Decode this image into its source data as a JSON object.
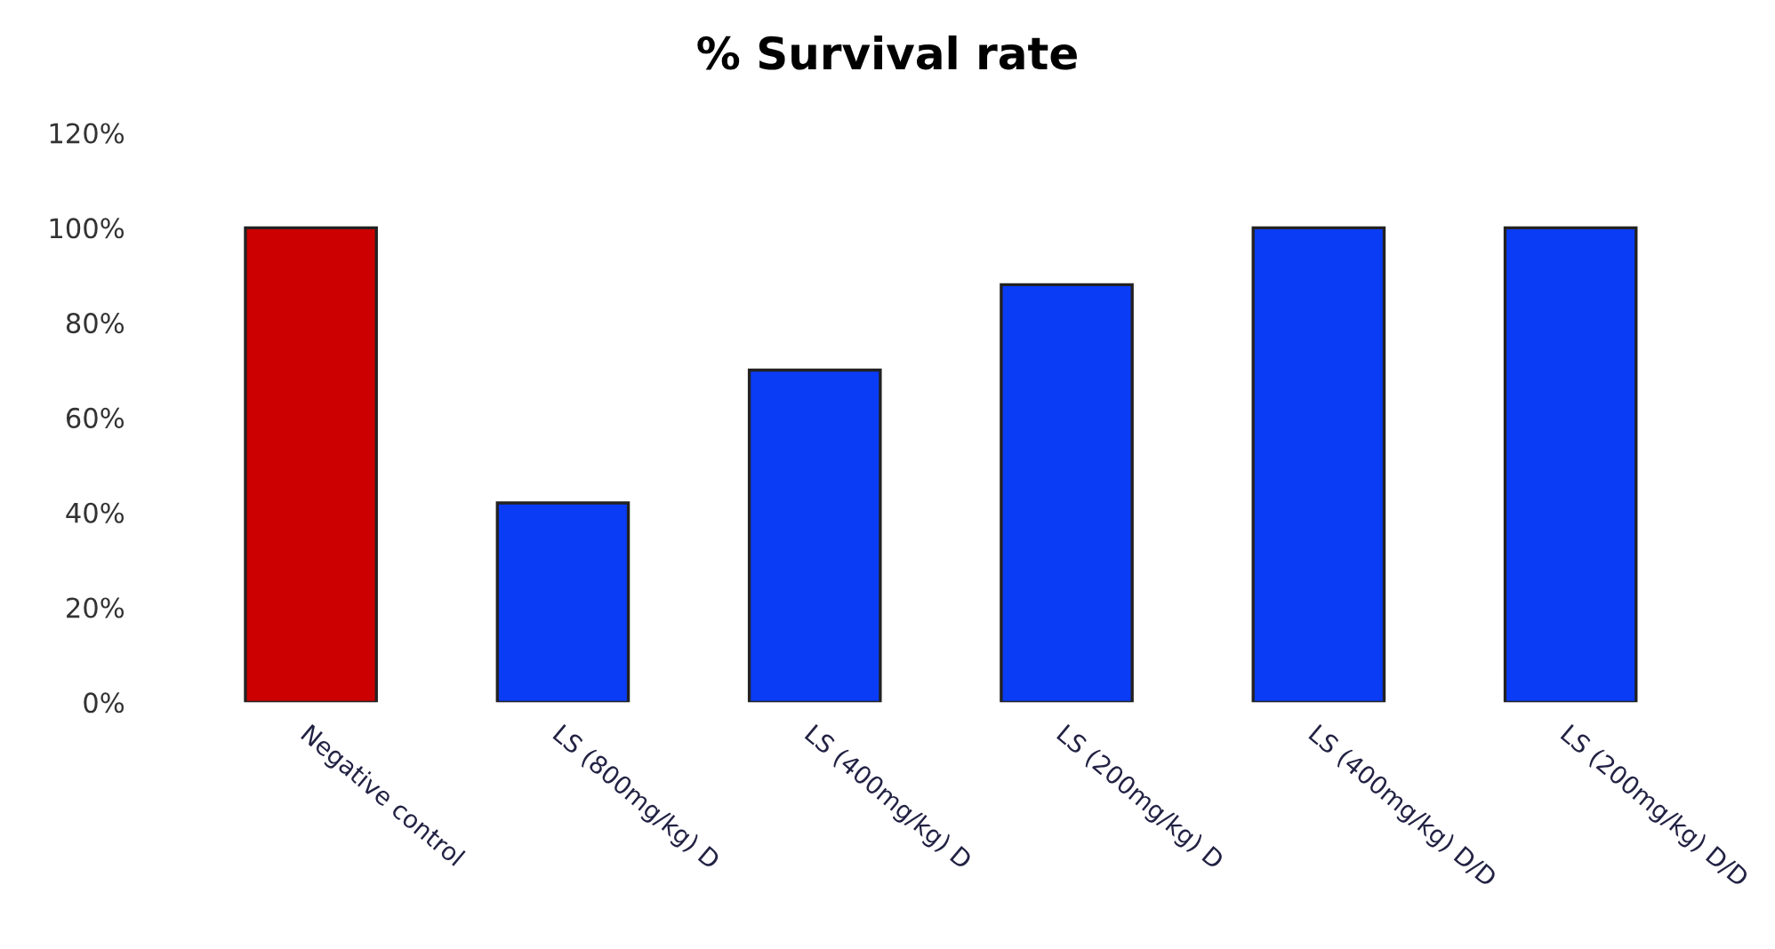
{
  "chart_data": {
    "type": "bar",
    "title": "% Survival rate",
    "categories": [
      "Negative control",
      "LS (800mg/kg) D",
      "LS (400mg/kg) D",
      "LS (200mg/kg) D",
      "LS (400mg/kg) D/D",
      "LS (200mg/kg) D/D"
    ],
    "values": [
      100,
      42,
      70,
      88,
      100,
      100
    ],
    "colors": [
      "#cc0000",
      "#0a3cf5",
      "#0a3cf5",
      "#0a3cf5",
      "#0a3cf5",
      "#0a3cf5"
    ],
    "ylim": [
      0,
      120
    ],
    "yticks": [
      {
        "value": 0,
        "label": "0%"
      },
      {
        "value": 20,
        "label": "20%"
      },
      {
        "value": 40,
        "label": "40%"
      },
      {
        "value": 60,
        "label": "60%"
      },
      {
        "value": 80,
        "label": "80%"
      },
      {
        "value": 100,
        "label": "100%"
      },
      {
        "value": 120,
        "label": "120%"
      }
    ],
    "grid": false,
    "legend": false
  }
}
